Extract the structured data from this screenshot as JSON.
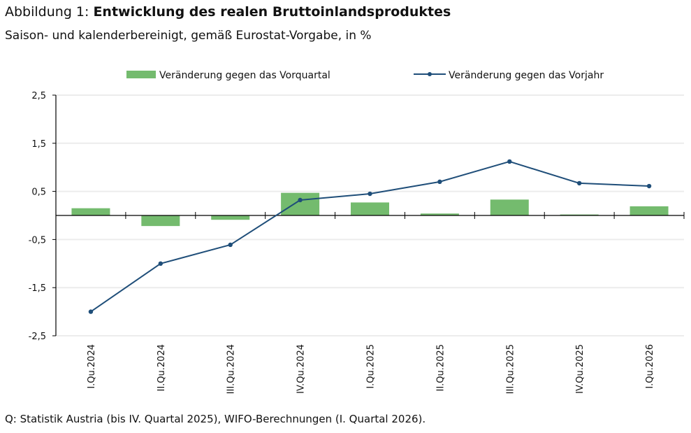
{
  "header": {
    "title_prefix": "Abbildung 1: ",
    "title_bold": "Entwicklung des realen Bruttoinlandsproduktes",
    "subtitle": "Saison- und kalenderbereinigt, gemäß Eurostat-Vorgabe, in %"
  },
  "footer": {
    "source": "Q: Statistik Austria (bis IV. Quartal 2025), WIFO-Berechnungen (I. Quartal 2026)."
  },
  "chart_data": {
    "type": "bar",
    "title": "Entwicklung des realen Bruttoinlandsproduktes",
    "subtitle": "Saison- und kalenderbereinigt, gemäß Eurostat-Vorgabe, in %",
    "xlabel": "",
    "ylabel": "",
    "ylim": [
      -2.5,
      2.5
    ],
    "yticks": [
      2.5,
      1.5,
      0.5,
      -0.5,
      -1.5,
      -2.5
    ],
    "ytick_labels": [
      "2,5",
      "1,5",
      "0,5",
      "-0,5",
      "-1,5",
      "-2,5"
    ],
    "grid": true,
    "legend_position": "top",
    "categories": [
      "I.Qu.2024",
      "II.Qu.2024",
      "III.Qu.2024",
      "IV.Qu.2024",
      "I.Qu.2025",
      "II.Qu.2025",
      "III.Qu.2025",
      "IV.Qu.2025",
      "I.Qu.2026"
    ],
    "series": [
      {
        "name": "Veränderung gegen das Vorquartal",
        "type": "bar",
        "color": "#74bb6e",
        "values": [
          0.15,
          -0.22,
          -0.09,
          0.47,
          0.27,
          0.04,
          0.33,
          0.02,
          0.19
        ]
      },
      {
        "name": "Veränderung gegen das Vorjahr",
        "type": "line",
        "color": "#1f4e79",
        "values": [
          -2.0,
          -1.0,
          -0.61,
          0.32,
          0.45,
          0.7,
          1.12,
          0.67,
          0.61
        ]
      }
    ]
  }
}
